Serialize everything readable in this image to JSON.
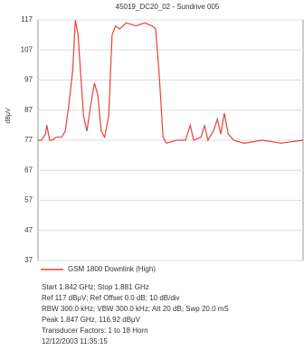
{
  "chart_data": {
    "type": "line",
    "title": "45019_DC20_02 - Sundrive 005",
    "y_label": "dBμV",
    "x": [
      1.842,
      1.8425,
      1.8431,
      1.8433,
      1.8437,
      1.8441,
      1.8447,
      1.8455,
      1.846,
      1.8465,
      1.8471,
      1.8475,
      1.8479,
      1.8481,
      1.8487,
      1.8492,
      1.8497,
      1.8503,
      1.8508,
      1.8513,
      1.8518,
      1.8524,
      1.8529,
      1.8534,
      1.854,
      1.855,
      1.8564,
      1.8577,
      1.8588,
      1.8593,
      1.8598,
      1.8604,
      1.8609,
      1.8624,
      1.8637,
      1.8644,
      1.8649,
      1.866,
      1.8665,
      1.867,
      1.8678,
      1.8684,
      1.8689,
      1.8694,
      1.87,
      1.8708,
      1.8723,
      1.875,
      1.8777,
      1.881
    ],
    "series": [
      {
        "name": "GSM 1800 Downlink (High)",
        "color": "#e8413c",
        "values": [
          77,
          77,
          79,
          82,
          77,
          77,
          78,
          78,
          80,
          88,
          100,
          116.9,
          112,
          105,
          85,
          80,
          88,
          96,
          92,
          80,
          78,
          85,
          112,
          115,
          114,
          116,
          115,
          116,
          115,
          114,
          100,
          78,
          76,
          77,
          77,
          82,
          77,
          78,
          82,
          77,
          80,
          84,
          79,
          86,
          79,
          77,
          76,
          77,
          76,
          77
        ]
      }
    ],
    "xlim": [
      1.842,
      1.881
    ],
    "ylim": [
      37,
      117
    ],
    "yticks": [
      37,
      47,
      57,
      67,
      77,
      87,
      97,
      107,
      117
    ],
    "grid": true,
    "notes": [
      "Start 1.842 GHz; Stop 1.881 GHz",
      "Ref 117 dBμV; Ref Offset 0.0 dB; 10 dB/div",
      "RBW 300.0 kHz; VBW 300.0 kHz; Att 20 dB; Swp 20.0 mS",
      "Peak 1.847 GHz, 116.92 dBμV",
      "Transducer Factors: 1 to 18 Horn",
      "12/12/2003 11:35:15"
    ]
  }
}
